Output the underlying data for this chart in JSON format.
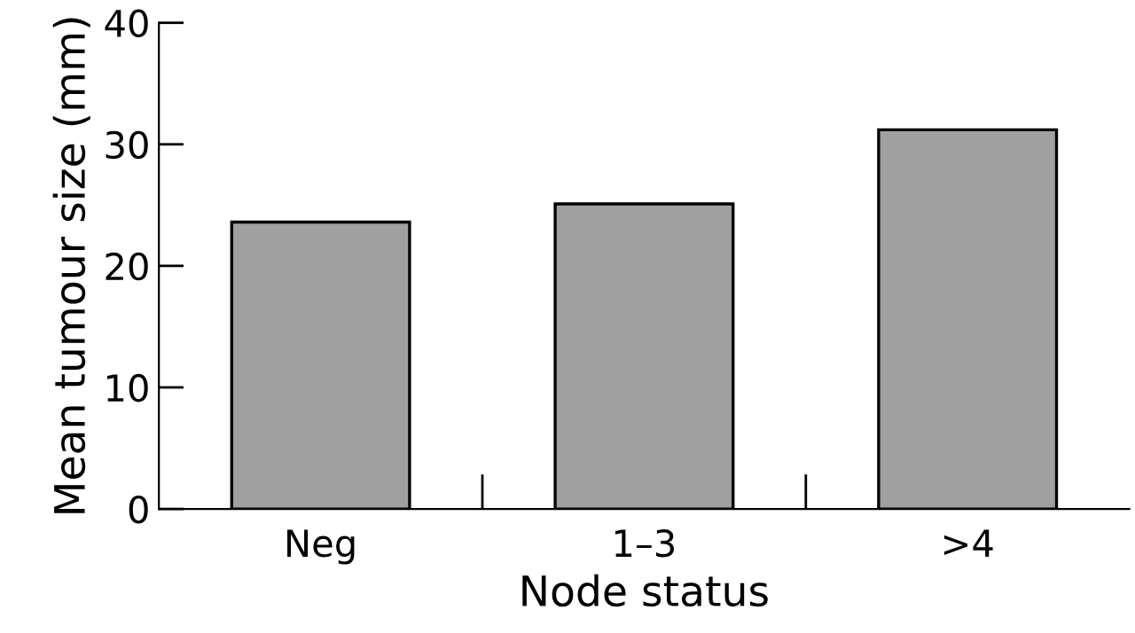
{
  "chart_data": {
    "type": "bar",
    "xlabel": "Node status",
    "ylabel": "Mean tumour size (mm)",
    "categories": [
      "Neg",
      "1–3",
      ">4"
    ],
    "values": [
      23.6,
      25.1,
      31.2
    ],
    "color": "#a0a0a0",
    "ylim": [
      0,
      40
    ],
    "yticks": [
      0,
      10,
      20,
      30,
      40
    ],
    "grid": false,
    "legend": false
  }
}
